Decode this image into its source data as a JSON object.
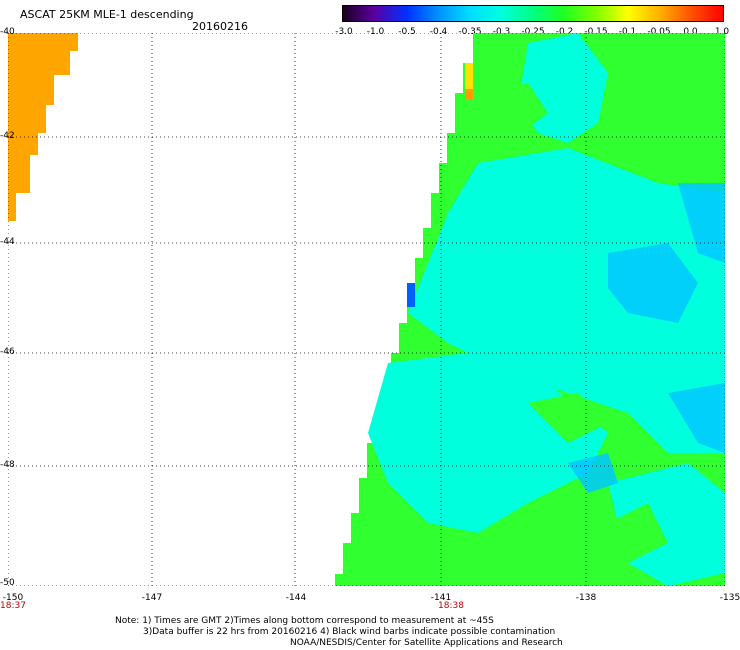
{
  "header": {
    "title": "ASCAT 25KM MLE-1 descending",
    "date": "20160216"
  },
  "colorbar": {
    "ticks": [
      "-3.0",
      "-1.0",
      "-0.5",
      "-0.4",
      "-0.35",
      "-0.3",
      "-0.25",
      "-0.2",
      "-0.15",
      "-0.1",
      "-0.05",
      "0.0",
      "1.0"
    ],
    "colors": [
      "#1a0020",
      "#5a00a0",
      "#0030ff",
      "#0090ff",
      "#00ddff",
      "#00ffe0",
      "#00ff80",
      "#20ff20",
      "#80ff00",
      "#ffff00",
      "#ffb000",
      "#ff5000",
      "#ff0000"
    ]
  },
  "map": {
    "lat_labels": [
      "-40",
      "-42",
      "-44",
      "-46",
      "-48",
      "-50"
    ],
    "lon_labels": [
      "-150",
      "-147",
      "-144",
      "-141",
      "-138",
      "-135"
    ],
    "time_labels": [
      "18:37",
      "18:38"
    ],
    "colors": {
      "orange": "#ffa500",
      "dark_orange": "#ff9a00",
      "yellow": "#ffe000",
      "green": "#30ff30",
      "cyan": "#00ffdd",
      "light_blue": "#00c8ff",
      "blue": "#0060ff"
    }
  },
  "notes": {
    "line1": "Note: 1) Times are GMT 2)Times along bottom correspond to measurement at ~45S",
    "line2": "3)Data buffer is 22 hrs from 20160216 4) Black wind barbs indicate possible contamination",
    "line3": "NOAA/NESDIS/Center for Satellite Applications and Research"
  }
}
